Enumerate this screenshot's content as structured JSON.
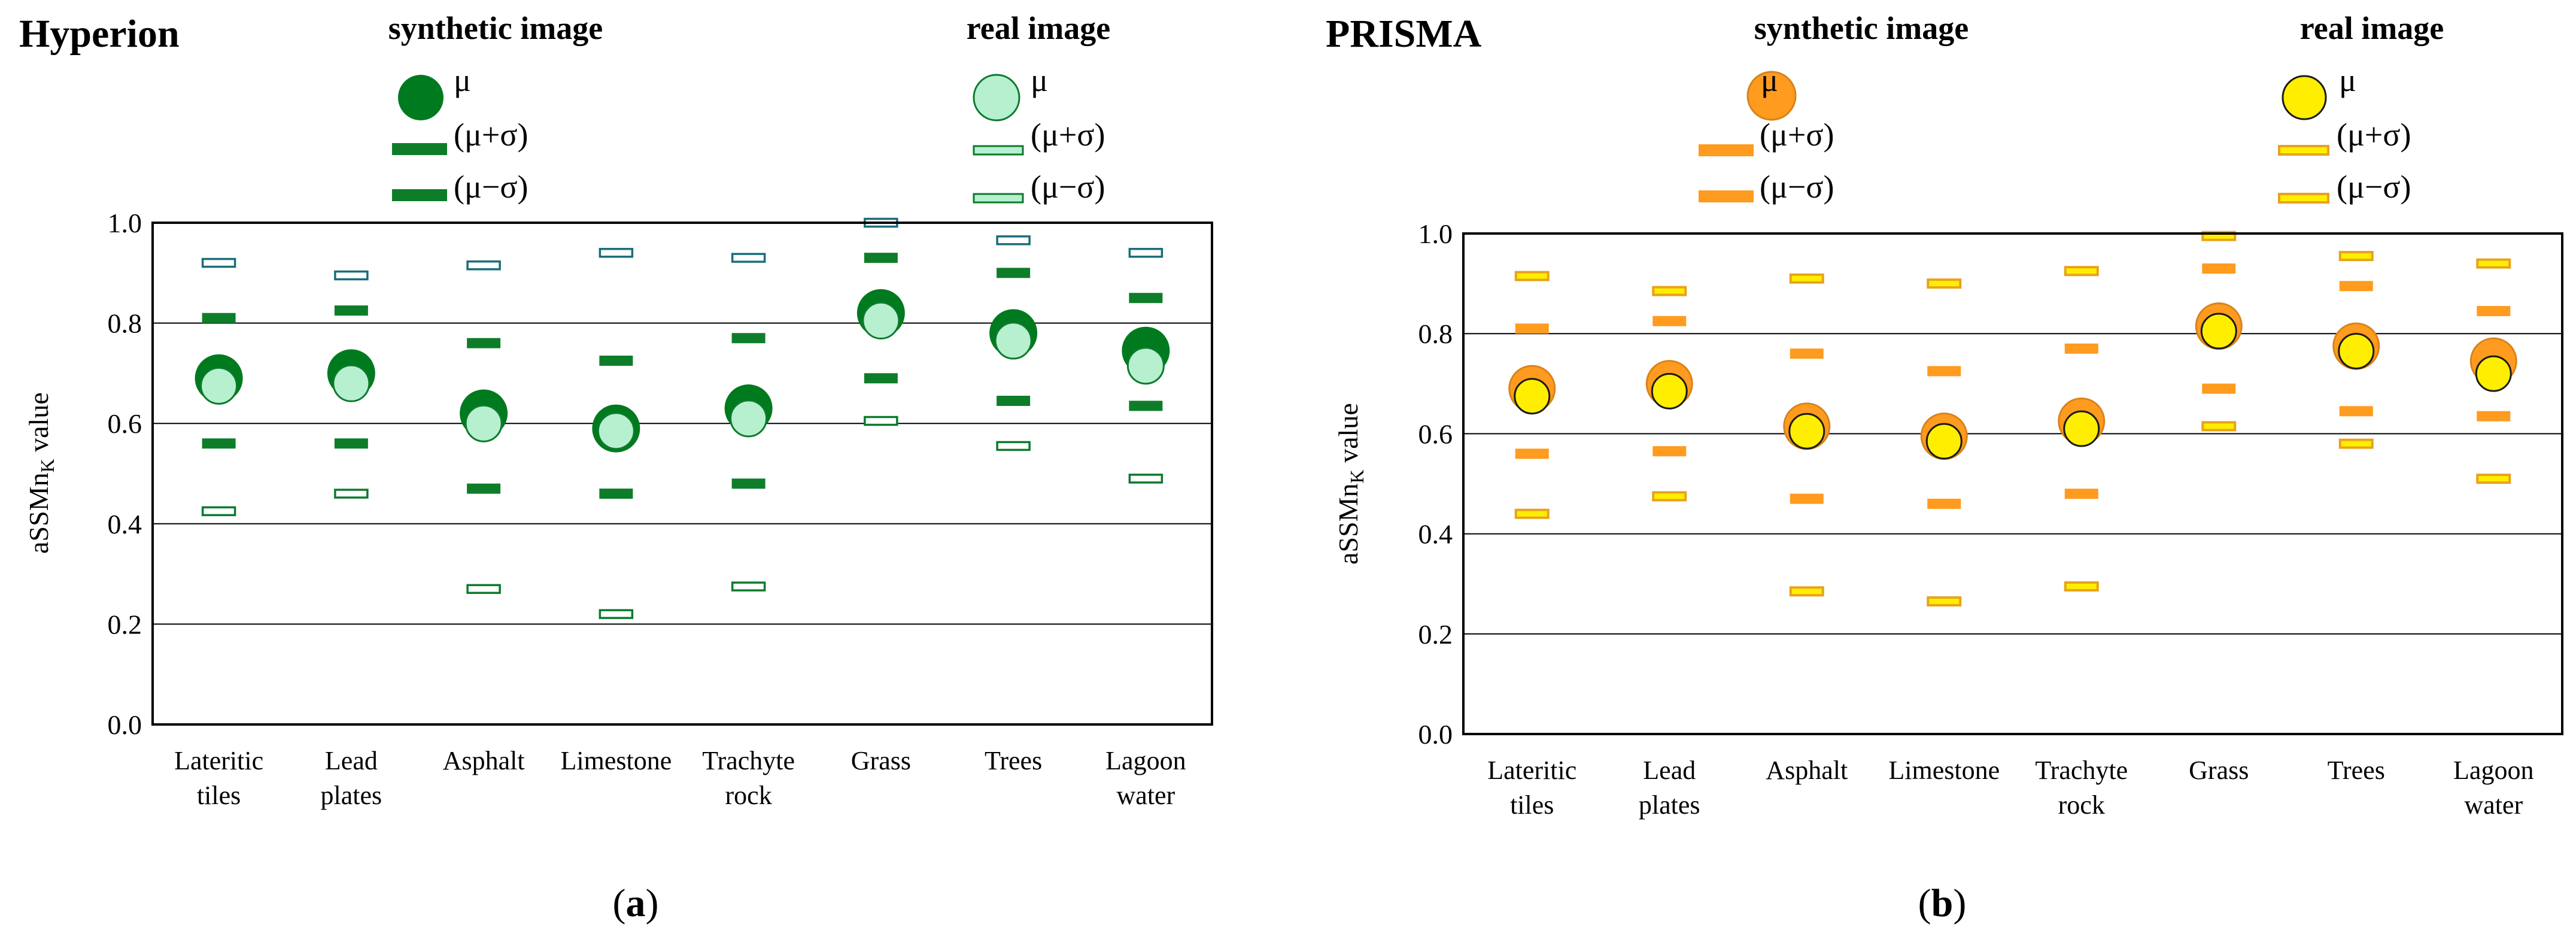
{
  "colors": {
    "hyperion_synthetic": "#007a1e",
    "hyperion_synthetic_bar": "#0e7d2a",
    "hyperion_real_fill": "#b6f0cf",
    "hyperion_real_stroke": "#0c7a2c",
    "hyperion_upper_real_stroke": "#1a6e7a",
    "prisma_synthetic": "#ff9b1e",
    "prisma_synthetic_stroke": "#d9821a",
    "prisma_real_fill": "#ffee00",
    "prisma_real_stroke": "#1a1a1a",
    "prisma_real_bar_stroke": "#e8a21c"
  },
  "panels": [
    {
      "title": "Hyperion",
      "caption_letter": "a",
      "legend": {
        "synthetic_header": "synthetic image",
        "real_header": "real image",
        "mu": "μ",
        "mu_plus_sigma": "(μ+σ)",
        "mu_minus_sigma": "(μ−σ)"
      }
    },
    {
      "title": "PRISMA",
      "caption_letter": "b",
      "legend": {
        "synthetic_header": "synthetic image",
        "real_header": "real image",
        "mu": "μ",
        "mu_plus_sigma": "(μ+σ)",
        "mu_minus_sigma": "(μ−σ)"
      }
    }
  ],
  "chart_data": [
    {
      "type": "scatter",
      "title": "Hyperion",
      "ylabel_main": "aSSMn",
      "ylabel_sub": "K",
      "ylabel_tail": " value",
      "ylim": [
        0.0,
        1.0
      ],
      "yticks": [
        "0.0",
        "0.2",
        "0.4",
        "0.6",
        "0.8",
        "1.0"
      ],
      "grid": "horizontal",
      "categories": [
        [
          "Lateritic",
          "tiles"
        ],
        [
          "Lead",
          "plates"
        ],
        [
          "Asphalt"
        ],
        [
          "Limestone"
        ],
        [
          "Trachyte",
          "rock"
        ],
        [
          "Grass"
        ],
        [
          "Trees"
        ],
        [
          "Lagoon",
          "water"
        ]
      ],
      "series": [
        {
          "name": "synthetic image",
          "mu": [
            0.69,
            0.7,
            0.62,
            0.59,
            0.63,
            0.82,
            0.78,
            0.745
          ],
          "plus": [
            0.81,
            0.825,
            0.76,
            0.725,
            0.77,
            0.93,
            0.9,
            0.85
          ],
          "minus": [
            0.56,
            0.56,
            0.47,
            0.46,
            0.48,
            0.69,
            0.645,
            0.635
          ]
        },
        {
          "name": "real image",
          "mu": [
            0.675,
            0.68,
            0.6,
            0.585,
            0.61,
            0.805,
            0.765,
            0.715
          ],
          "plus": [
            0.92,
            0.895,
            0.915,
            0.94,
            0.93,
            1.0,
            0.965,
            0.94
          ],
          "minus": [
            0.425,
            0.46,
            0.27,
            0.22,
            0.275,
            0.605,
            0.555,
            0.49
          ]
        }
      ]
    },
    {
      "type": "scatter",
      "title": "PRISMA",
      "ylabel_main": "aSSMn",
      "ylabel_sub": "K",
      "ylabel_tail": " value",
      "ylim": [
        0.0,
        1.0
      ],
      "yticks": [
        "0.0",
        "0.2",
        "0.4",
        "0.6",
        "0.8",
        "1.0"
      ],
      "grid": "horizontal",
      "categories": [
        [
          "Lateritic",
          "tiles"
        ],
        [
          "Lead",
          "plates"
        ],
        [
          "Asphalt"
        ],
        [
          "Limestone"
        ],
        [
          "Trachyte",
          "rock"
        ],
        [
          "Grass"
        ],
        [
          "Trees"
        ],
        [
          "Lagoon",
          "water"
        ]
      ],
      "series": [
        {
          "name": "synthetic image",
          "mu": [
            0.69,
            0.7,
            0.615,
            0.595,
            0.625,
            0.815,
            0.775,
            0.745
          ],
          "plus": [
            0.81,
            0.825,
            0.76,
            0.725,
            0.77,
            0.93,
            0.895,
            0.845
          ],
          "minus": [
            0.56,
            0.565,
            0.47,
            0.46,
            0.48,
            0.69,
            0.645,
            0.635
          ]
        },
        {
          "name": "real image",
          "mu": [
            0.675,
            0.685,
            0.605,
            0.585,
            0.61,
            0.805,
            0.765,
            0.72
          ],
          "plus": [
            0.915,
            0.885,
            0.91,
            0.9,
            0.925,
            0.995,
            0.955,
            0.94
          ],
          "minus": [
            0.44,
            0.475,
            0.285,
            0.265,
            0.295,
            0.615,
            0.58,
            0.51
          ]
        }
      ]
    }
  ]
}
